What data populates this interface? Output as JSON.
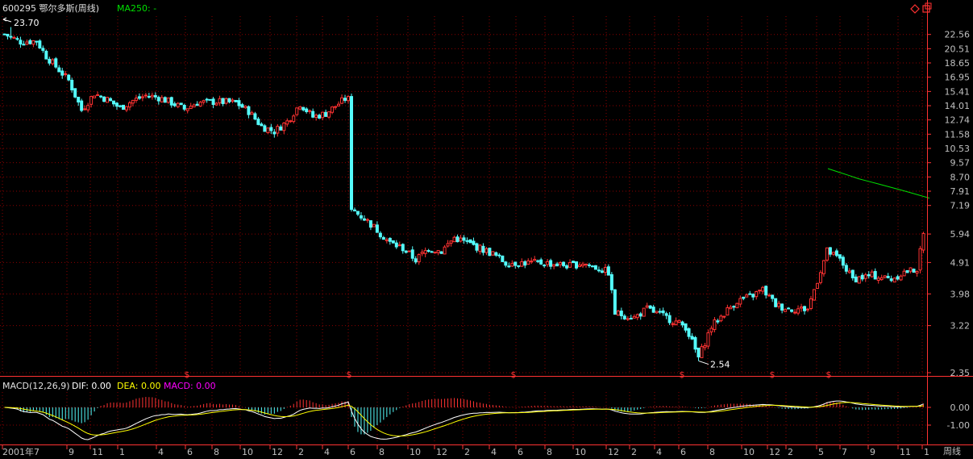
{
  "header": {
    "code_name": "600295 鄂尔多斯(周线)",
    "ma_label": "MA250: -"
  },
  "macd_header": {
    "name": "MACD(12,26,9)",
    "dif": "DIF: 0.00",
    "dea": "DEA: 0.00",
    "macd": "MACD: 0.00"
  },
  "period_label": "周线",
  "colors": {
    "up": "#ff3232",
    "down": "#54fcfc",
    "ma": "#00e000",
    "grid": "#8b0000",
    "axis_text": "#c0c0c0",
    "dif": "#ffffff",
    "dea": "#ffff00",
    "macd_label": "#ff00ff",
    "dividend_marker": "#ff3232"
  },
  "icons": [
    "diamond-icon",
    "restore-window-icon"
  ],
  "chart_data": [
    {
      "type": "candlestick",
      "title": "600295 鄂尔多斯(周线)",
      "scale": "log",
      "ylim": [
        2.35,
        25.5
      ],
      "y_ticks": [
        "22.56",
        "20.51",
        "18.65",
        "16.95",
        "15.41",
        "14.01",
        "12.74",
        "11.58",
        "10.53",
        "9.57",
        "8.70",
        "7.91",
        "7.19",
        "5.94",
        "4.91",
        "3.98",
        "3.22",
        "2.35"
      ],
      "x_ticks": [
        "2001年7",
        "9",
        "11",
        "1",
        "4",
        "6",
        "8",
        "10",
        "12",
        "2",
        "4",
        "6",
        "8",
        "10",
        "12",
        "2",
        "4",
        "6",
        "8",
        "10",
        "12",
        "2",
        "4",
        "6",
        "8",
        "10",
        "12",
        "2",
        "5",
        "7",
        "9",
        "11",
        "1"
      ],
      "annotations": [
        {
          "text": "23.70",
          "kind": "high"
        },
        {
          "text": "2.54",
          "kind": "low"
        }
      ],
      "dividend_markers_count": 6,
      "dividend_marker_glyph": "$",
      "series": [
        {
          "name": "MA250",
          "values": [
            9.2,
            9.0,
            8.8,
            8.6,
            8.45,
            8.3,
            8.15,
            8.0,
            7.85,
            7.7,
            7.55
          ]
        }
      ],
      "weekly_close_anchors": [
        [
          0,
          22.6
        ],
        [
          5,
          21.5
        ],
        [
          10,
          21.6
        ],
        [
          13,
          19.5
        ],
        [
          16,
          18.2
        ],
        [
          20,
          16.6
        ],
        [
          24,
          13.6
        ],
        [
          28,
          15.2
        ],
        [
          32,
          14.6
        ],
        [
          36,
          13.8
        ],
        [
          40,
          14.5
        ],
        [
          44,
          15.0
        ],
        [
          48,
          14.8
        ],
        [
          52,
          14.3
        ],
        [
          56,
          13.7
        ],
        [
          60,
          14.3
        ],
        [
          66,
          14.4
        ],
        [
          72,
          14.3
        ],
        [
          76,
          13.5
        ],
        [
          80,
          12.2
        ],
        [
          84,
          11.8
        ],
        [
          88,
          12.6
        ],
        [
          92,
          14.2
        ],
        [
          96,
          13.0
        ],
        [
          100,
          13.3
        ],
        [
          104,
          14.2
        ],
        [
          107,
          14.9
        ],
        [
          108,
          7.0
        ],
        [
          112,
          6.6
        ],
        [
          116,
          6.1
        ],
        [
          120,
          5.6
        ],
        [
          124,
          5.4
        ],
        [
          128,
          5.0
        ],
        [
          132,
          5.4
        ],
        [
          136,
          5.3
        ],
        [
          140,
          5.8
        ],
        [
          144,
          5.6
        ],
        [
          148,
          5.4
        ],
        [
          152,
          5.2
        ],
        [
          156,
          4.9
        ],
        [
          160,
          4.9
        ],
        [
          168,
          4.9
        ],
        [
          176,
          4.8
        ],
        [
          180,
          4.9
        ],
        [
          188,
          4.6
        ],
        [
          190,
          3.5
        ],
        [
          196,
          3.4
        ],
        [
          200,
          3.6
        ],
        [
          206,
          3.4
        ],
        [
          212,
          3.2
        ],
        [
          216,
          2.6
        ],
        [
          220,
          3.2
        ],
        [
          224,
          3.5
        ],
        [
          228,
          3.8
        ],
        [
          232,
          3.9
        ],
        [
          236,
          4.1
        ],
        [
          240,
          3.7
        ],
        [
          244,
          3.6
        ],
        [
          250,
          3.6
        ],
        [
          256,
          5.3
        ],
        [
          260,
          5.0
        ],
        [
          264,
          4.4
        ],
        [
          270,
          4.5
        ],
        [
          276,
          4.4
        ],
        [
          280,
          4.6
        ],
        [
          284,
          4.7
        ],
        [
          286,
          5.9
        ]
      ]
    },
    {
      "type": "macd",
      "title": "MACD(12,26,9)",
      "y_ticks": [
        "0.00",
        "-1.00"
      ],
      "series": [
        {
          "name": "DIF"
        },
        {
          "name": "DEA"
        },
        {
          "name": "MACD"
        }
      ]
    }
  ]
}
